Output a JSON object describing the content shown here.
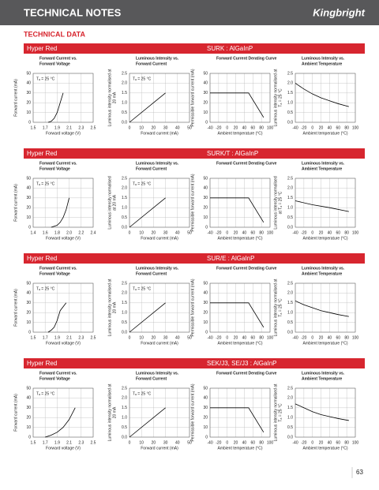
{
  "header": {
    "title": "TECHNICAL NOTES",
    "logo": "Kingbright"
  },
  "subtitle": "TECHNICAL DATA",
  "sections": [
    {
      "name": "Hyper Red",
      "part": "SURK : AlGaInP"
    },
    {
      "name": "Hyper Red",
      "part": "SURK/T : AlGaInP"
    },
    {
      "name": "Hyper Red",
      "part": "SUR/E : AlGaInP"
    },
    {
      "name": "Hyper Red",
      "part": "SEK/J3, SE/J3 : AlGaInP"
    }
  ],
  "chart_data": [
    {
      "type": "line",
      "title": [
        "Forward Current vs.",
        "Forward Voltage"
      ],
      "x_label": "Forward voltage (V)",
      "y_label": [
        "Forward current (mA)"
      ],
      "annotation": "Tₐ = 25 °C",
      "xlim": [
        1.5,
        2.5
      ],
      "ylim": [
        0,
        50
      ],
      "xticks": [
        1.5,
        1.7,
        1.9,
        2.1,
        2.3,
        2.5
      ],
      "yticks": [
        0,
        10,
        20,
        30,
        40,
        50
      ],
      "grid": true,
      "series": [
        {
          "color": "#000000",
          "x": [
            1.75,
            1.8,
            1.85,
            1.9,
            1.95,
            2.0
          ],
          "values": [
            0,
            1,
            4,
            10,
            20,
            30
          ]
        }
      ]
    },
    {
      "type": "line",
      "title": [
        "Luminous Intensity vs.",
        "Forward Current"
      ],
      "x_label": "Forward current (mA)",
      "y_label": [
        "Luminous intensity normalised at",
        "20 mA"
      ],
      "annotation": "Tₐ = 25 °C",
      "xlim": [
        0,
        50
      ],
      "ylim": [
        0,
        2.5
      ],
      "xticks": [
        0,
        10,
        20,
        30,
        40,
        50
      ],
      "yticks": [
        {
          "value": 0,
          "label": "0.0"
        },
        0.5,
        {
          "value": 1,
          "label": "1.0"
        },
        1.5,
        {
          "value": 2,
          "label": "2.0"
        },
        2.5
      ],
      "grid": true,
      "series": [
        {
          "color": "#000000",
          "x": [
            0,
            30
          ],
          "values": [
            0,
            1.5
          ]
        }
      ]
    },
    {
      "type": "line",
      "title": [
        "Forward Current Derating  Curve"
      ],
      "x_label": "Ambient temperature (°C)",
      "y_label": [
        "Permissible forward current (mA)"
      ],
      "xlim": [
        -40,
        100
      ],
      "ylim": [
        0,
        50
      ],
      "xticks": [
        -40,
        -20,
        0,
        20,
        40,
        60,
        80,
        100
      ],
      "yticks": [
        0,
        10,
        20,
        30,
        40,
        50
      ],
      "grid": true,
      "series": [
        {
          "color": "#000000",
          "x": [
            -40,
            50,
            85
          ],
          "values": [
            30,
            30,
            5
          ]
        }
      ]
    },
    {
      "type": "line",
      "title": [
        "Luminous Intensity vs.",
        "Ambient Temperature"
      ],
      "x_label": "Ambient temperature (°C)",
      "y_label": [
        "Luminous intensity normalised at",
        "Tₐ = 25 °C"
      ],
      "xlim": [
        -40,
        100
      ],
      "ylim": [
        0,
        2.5
      ],
      "xticks": [
        -40,
        -20,
        0,
        20,
        40,
        60,
        80,
        100
      ],
      "yticks": [
        {
          "value": 0,
          "label": "0.0"
        },
        0.5,
        {
          "value": 1,
          "label": "1.0"
        },
        1.5,
        {
          "value": 2,
          "label": "2.0"
        },
        2.5
      ],
      "grid": true,
      "series": [
        {
          "color": "#000000",
          "x": [
            -40,
            -20,
            0,
            20,
            40,
            60,
            85
          ],
          "values": [
            2.0,
            1.7,
            1.45,
            1.25,
            1.1,
            0.95,
            0.8
          ]
        }
      ]
    },
    {
      "type": "line",
      "title": [
        "Forward Current vs.",
        "Forward Voltage"
      ],
      "x_label": "Forward voltage (V)",
      "y_label": [
        "Forward current (mA)"
      ],
      "annotation": "Tₐ = 25 °C",
      "xlim": [
        1.4,
        2.4
      ],
      "ylim": [
        0,
        50
      ],
      "xticks": [
        1.4,
        1.6,
        1.8,
        {
          "value": 2,
          "label": "2.0"
        },
        2.2,
        2.4
      ],
      "yticks": [
        0,
        10,
        20,
        30,
        40,
        50
      ],
      "grid": true,
      "series": [
        {
          "color": "#000000",
          "x": [
            1.7,
            1.8,
            1.85,
            1.9,
            1.95,
            2.0
          ],
          "values": [
            0,
            2,
            5,
            10,
            18,
            30
          ]
        }
      ]
    },
    {
      "type": "line",
      "title": [
        "Luminous Intensity vs.",
        "Forward Current"
      ],
      "x_label": "Forward current (mA)",
      "y_label": [
        "Luminous intensity normalised",
        "at 20 mA"
      ],
      "annotation": "Tₐ = 25 °C",
      "xlim": [
        0,
        50
      ],
      "ylim": [
        0,
        2.5
      ],
      "xticks": [
        0,
        10,
        20,
        30,
        40,
        50
      ],
      "yticks": [
        {
          "value": 0,
          "label": "0.0"
        },
        0.5,
        {
          "value": 1,
          "label": "1.0"
        },
        1.5,
        {
          "value": 2,
          "label": "2.0"
        },
        2.5
      ],
      "grid": true,
      "series": [
        {
          "color": "#000000",
          "x": [
            0,
            30
          ],
          "values": [
            0,
            1.5
          ]
        }
      ]
    },
    {
      "type": "line",
      "title": [
        "Forward Current Derating  Curve"
      ],
      "x_label": "Ambient temperature (°C)",
      "y_label": [
        "Permissible forward current (mA)"
      ],
      "xlim": [
        -40,
        100
      ],
      "ylim": [
        0,
        50
      ],
      "xticks": [
        -40,
        -20,
        0,
        20,
        40,
        60,
        80,
        100
      ],
      "yticks": [
        0,
        10,
        20,
        30,
        40,
        50
      ],
      "grid": true,
      "series": [
        {
          "color": "#000000",
          "x": [
            -40,
            50,
            85
          ],
          "values": [
            30,
            30,
            5
          ]
        }
      ]
    },
    {
      "type": "line",
      "title": [
        "Luminous Intensity vs.",
        "Ambient Temperature"
      ],
      "x_label": "Ambient temperature (°C)",
      "y_label": [
        "Luminous intensity normalised",
        "at Tₐ = 25 °C"
      ],
      "xlim": [
        -40,
        100
      ],
      "ylim": [
        0,
        2.5
      ],
      "xticks": [
        -40,
        -20,
        0,
        20,
        40,
        60,
        80,
        100
      ],
      "yticks": [
        {
          "value": 0,
          "label": "0.0"
        },
        0.5,
        {
          "value": 1,
          "label": "1.0"
        },
        1.5,
        {
          "value": 2,
          "label": "2.0"
        },
        2.5
      ],
      "grid": true,
      "series": [
        {
          "color": "#000000",
          "x": [
            -40,
            0,
            40,
            85
          ],
          "values": [
            1.35,
            1.15,
            1.0,
            0.8
          ]
        }
      ]
    },
    {
      "type": "line",
      "title": [
        "Forward Current vs.",
        "Forward Voltage"
      ],
      "x_label": "Forward voltage (V)",
      "y_label": [
        "Forward current (mA)"
      ],
      "annotation": "Tₐ = 25 °C",
      "xlim": [
        1.5,
        2.5
      ],
      "ylim": [
        0,
        50
      ],
      "xticks": [
        1.5,
        1.7,
        1.9,
        2.1,
        2.3,
        2.5
      ],
      "yticks": [
        0,
        10,
        20,
        30,
        40,
        50
      ],
      "grid": true,
      "series": [
        {
          "color": "#000000",
          "x": [
            1.75,
            1.8,
            1.85,
            1.9,
            1.95,
            2.05
          ],
          "values": [
            0,
            2,
            5,
            12,
            22,
            30
          ]
        }
      ]
    },
    {
      "type": "line",
      "title": [
        "Luminous Intensity vs.",
        "Forward Current"
      ],
      "x_label": "Forward current (mA)",
      "y_label": [
        "Luminous intensity normalised at",
        "20 mA"
      ],
      "annotation": "Tₐ = 25 °C",
      "xlim": [
        0,
        50
      ],
      "ylim": [
        0,
        2.5
      ],
      "xticks": [
        0,
        10,
        20,
        30,
        40,
        50
      ],
      "yticks": [
        {
          "value": 0,
          "label": "0.0"
        },
        0.5,
        {
          "value": 1,
          "label": "1.0"
        },
        1.5,
        {
          "value": 2,
          "label": "2.0"
        },
        2.5
      ],
      "grid": true,
      "series": [
        {
          "color": "#000000",
          "x": [
            0,
            30
          ],
          "values": [
            0,
            1.5
          ]
        }
      ]
    },
    {
      "type": "line",
      "title": [
        "Forward Current Derating  Curve"
      ],
      "x_label": "Ambient temperature (°C)",
      "y_label": [
        "Permissible forward current (mA)"
      ],
      "xlim": [
        -40,
        100
      ],
      "ylim": [
        0,
        50
      ],
      "xticks": [
        -40,
        -20,
        0,
        20,
        40,
        60,
        80,
        100
      ],
      "yticks": [
        0,
        10,
        20,
        30,
        40,
        50
      ],
      "grid": true,
      "series": [
        {
          "color": "#000000",
          "x": [
            -40,
            50,
            85
          ],
          "values": [
            30,
            30,
            5
          ]
        }
      ]
    },
    {
      "type": "line",
      "title": [
        "Luminous Intensity vs.",
        "Ambient Temperature"
      ],
      "x_label": "Ambient temperature (°C)",
      "y_label": [
        "Luminous intensity normalised at",
        "Tₐ = 25 °C"
      ],
      "xlim": [
        -40,
        100
      ],
      "ylim": [
        0,
        2.5
      ],
      "xticks": [
        -40,
        -20,
        0,
        20,
        40,
        60,
        80,
        100
      ],
      "yticks": [
        {
          "value": 0,
          "label": "0.0"
        },
        0.5,
        {
          "value": 1,
          "label": "1.0"
        },
        1.5,
        {
          "value": 2,
          "label": "2.0"
        },
        2.5
      ],
      "grid": true,
      "series": [
        {
          "color": "#000000",
          "x": [
            -40,
            -20,
            0,
            20,
            40,
            60,
            85
          ],
          "values": [
            1.6,
            1.4,
            1.25,
            1.1,
            1.0,
            0.9,
            0.8
          ]
        }
      ]
    },
    {
      "type": "line",
      "title": [
        "Forward Current vs.",
        "Forward Voltage"
      ],
      "x_label": "Forward voltage (V)",
      "y_label": [
        "Forward current (mA)"
      ],
      "annotation": "Tₐ = 25 °C",
      "xlim": [
        1.5,
        2.5
      ],
      "ylim": [
        0,
        50
      ],
      "xticks": [
        1.5,
        1.7,
        1.9,
        2.1,
        2.3,
        2.5
      ],
      "yticks": [
        0,
        10,
        20,
        30,
        40,
        50
      ],
      "grid": true,
      "series": [
        {
          "color": "#000000",
          "x": [
            1.7,
            1.8,
            1.9,
            2.0,
            2.1,
            2.2
          ],
          "values": [
            0,
            2,
            5,
            10,
            18,
            30
          ]
        }
      ]
    },
    {
      "type": "line",
      "title": [
        "Luminous Intensity vs.",
        "Forward Current"
      ],
      "x_label": "Forward current (mA)",
      "y_label": [
        "Luminous intensity normalised at",
        "20 mA"
      ],
      "annotation": "Tₐ = 25 °C",
      "xlim": [
        0,
        50
      ],
      "ylim": [
        0,
        2.5
      ],
      "xticks": [
        0,
        10,
        20,
        30,
        40,
        50
      ],
      "yticks": [
        {
          "value": 0,
          "label": "0.0"
        },
        0.5,
        {
          "value": 1,
          "label": "1.0"
        },
        1.5,
        {
          "value": 2,
          "label": "2.0"
        },
        2.5
      ],
      "grid": true,
      "series": [
        {
          "color": "#000000",
          "x": [
            0,
            30
          ],
          "values": [
            0,
            1.5
          ]
        }
      ]
    },
    {
      "type": "line",
      "title": [
        "Forward Current Derating  Curve"
      ],
      "x_label": "Ambient temperature (°C)",
      "y_label": [
        "Permissible forward current (mA)"
      ],
      "xlim": [
        -40,
        100
      ],
      "ylim": [
        0,
        50
      ],
      "xticks": [
        -40,
        -20,
        0,
        20,
        40,
        60,
        80,
        100
      ],
      "yticks": [
        0,
        10,
        20,
        30,
        40,
        50
      ],
      "grid": true,
      "series": [
        {
          "color": "#000000",
          "x": [
            -40,
            50,
            85
          ],
          "values": [
            30,
            30,
            5
          ]
        }
      ]
    },
    {
      "type": "line",
      "title": [
        "Luminous Intensity vs.",
        "Ambient Temperature"
      ],
      "x_label": "Ambient temperature (°C)",
      "y_label": [
        "Luminous intensity normalised at",
        "Tₐ = 25 °C"
      ],
      "xlim": [
        -40,
        100
      ],
      "ylim": [
        0,
        2.5
      ],
      "xticks": [
        -40,
        -20,
        0,
        20,
        40,
        60,
        80,
        100
      ],
      "yticks": [
        {
          "value": 0,
          "label": "0.0"
        },
        0.5,
        {
          "value": 1,
          "label": "1.0"
        },
        1.5,
        {
          "value": 2,
          "label": "2.0"
        },
        2.5
      ],
      "grid": true,
      "series": [
        {
          "color": "#000000",
          "x": [
            -40,
            -20,
            0,
            20,
            40,
            60,
            85
          ],
          "values": [
            1.7,
            1.5,
            1.3,
            1.15,
            1.05,
            0.95,
            0.85
          ]
        }
      ]
    }
  ],
  "page_number": "63"
}
